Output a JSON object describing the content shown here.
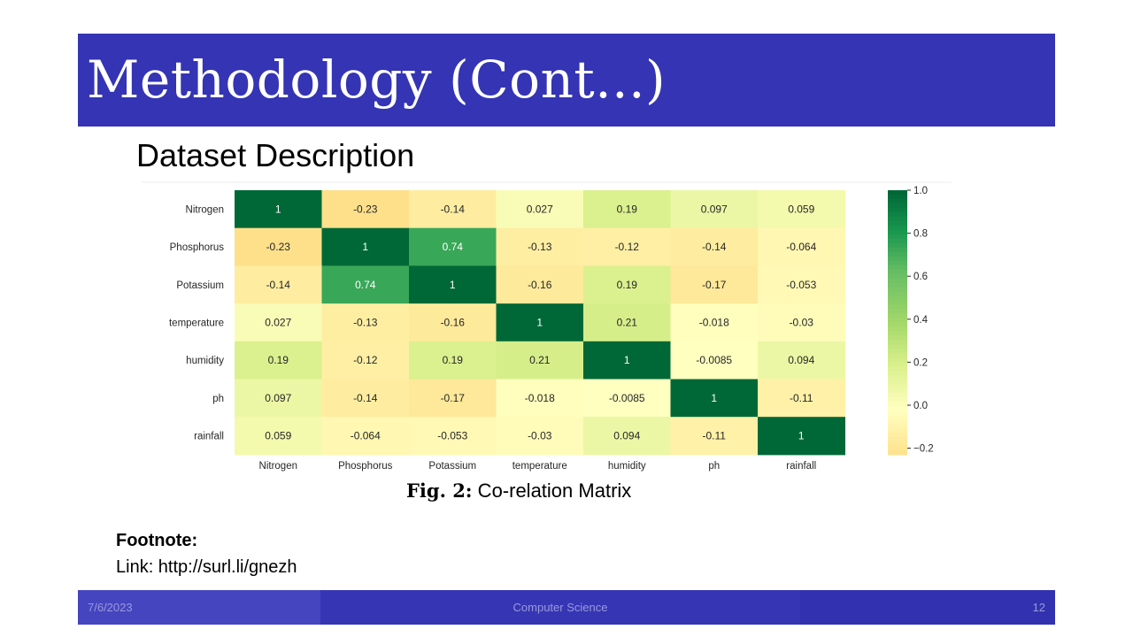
{
  "slide": {
    "title": "Methodology (Cont...)",
    "subtitle": "Dataset Description",
    "caption_label": "Fig. 2:",
    "caption_text": " Co-relation Matrix",
    "footnote_heading": "Footnote:",
    "footnote_link": "Link: http://surl.li/gnezh",
    "footer": {
      "date": "7/6/2023",
      "center": "Computer Science",
      "page": "12"
    }
  },
  "colors": {
    "title_bar": "#3434b4",
    "footer": "#3636b4"
  },
  "chart_data": {
    "type": "heatmap",
    "rows": [
      "Nitrogen",
      "Phosphorus",
      "Potassium",
      "temperature",
      "humidity",
      "ph",
      "rainfall"
    ],
    "cols": [
      "Nitrogen",
      "Phosphorus",
      "Potassium",
      "temperature",
      "humidity",
      "ph",
      "rainfall"
    ],
    "values": [
      [
        1,
        -0.23,
        -0.14,
        0.027,
        0.19,
        0.097,
        0.059
      ],
      [
        -0.23,
        1,
        0.74,
        -0.13,
        -0.12,
        -0.14,
        -0.064
      ],
      [
        -0.14,
        0.74,
        1,
        -0.16,
        0.19,
        -0.17,
        -0.053
      ],
      [
        0.027,
        -0.13,
        -0.16,
        1,
        0.21,
        -0.018,
        -0.03
      ],
      [
        0.19,
        -0.12,
        0.19,
        0.21,
        1,
        -0.0085,
        0.094
      ],
      [
        0.097,
        -0.14,
        -0.17,
        -0.018,
        -0.0085,
        1,
        -0.11
      ],
      [
        0.059,
        -0.064,
        -0.053,
        -0.03,
        0.094,
        -0.11,
        1
      ]
    ],
    "labels": [
      [
        "1",
        "-0.23",
        "-0.14",
        "0.027",
        "0.19",
        "0.097",
        "0.059"
      ],
      [
        "-0.23",
        "1",
        "0.74",
        "-0.13",
        "-0.12",
        "-0.14",
        "-0.064"
      ],
      [
        "-0.14",
        "0.74",
        "1",
        "-0.16",
        "0.19",
        "-0.17",
        "-0.053"
      ],
      [
        "0.027",
        "-0.13",
        "-0.16",
        "1",
        "0.21",
        "-0.018",
        "-0.03"
      ],
      [
        "0.19",
        "-0.12",
        "0.19",
        "0.21",
        "1",
        "-0.0085",
        "0.094"
      ],
      [
        "0.097",
        "-0.14",
        "-0.17",
        "-0.018",
        "-0.0085",
        "1",
        "-0.11"
      ],
      [
        "0.059",
        "-0.064",
        "-0.053",
        "-0.03",
        "0.094",
        "-0.11",
        "1"
      ]
    ],
    "colorbar": {
      "range": [
        -0.23,
        1.0
      ],
      "ticks": [
        1.0,
        0.8,
        0.6,
        0.4,
        0.2,
        0.0,
        -0.2
      ],
      "tick_labels": [
        "1.0",
        "0.8",
        "0.6",
        "0.4",
        "0.2",
        "0.0",
        "−0.2"
      ],
      "colormap": "RdYlGn"
    }
  }
}
